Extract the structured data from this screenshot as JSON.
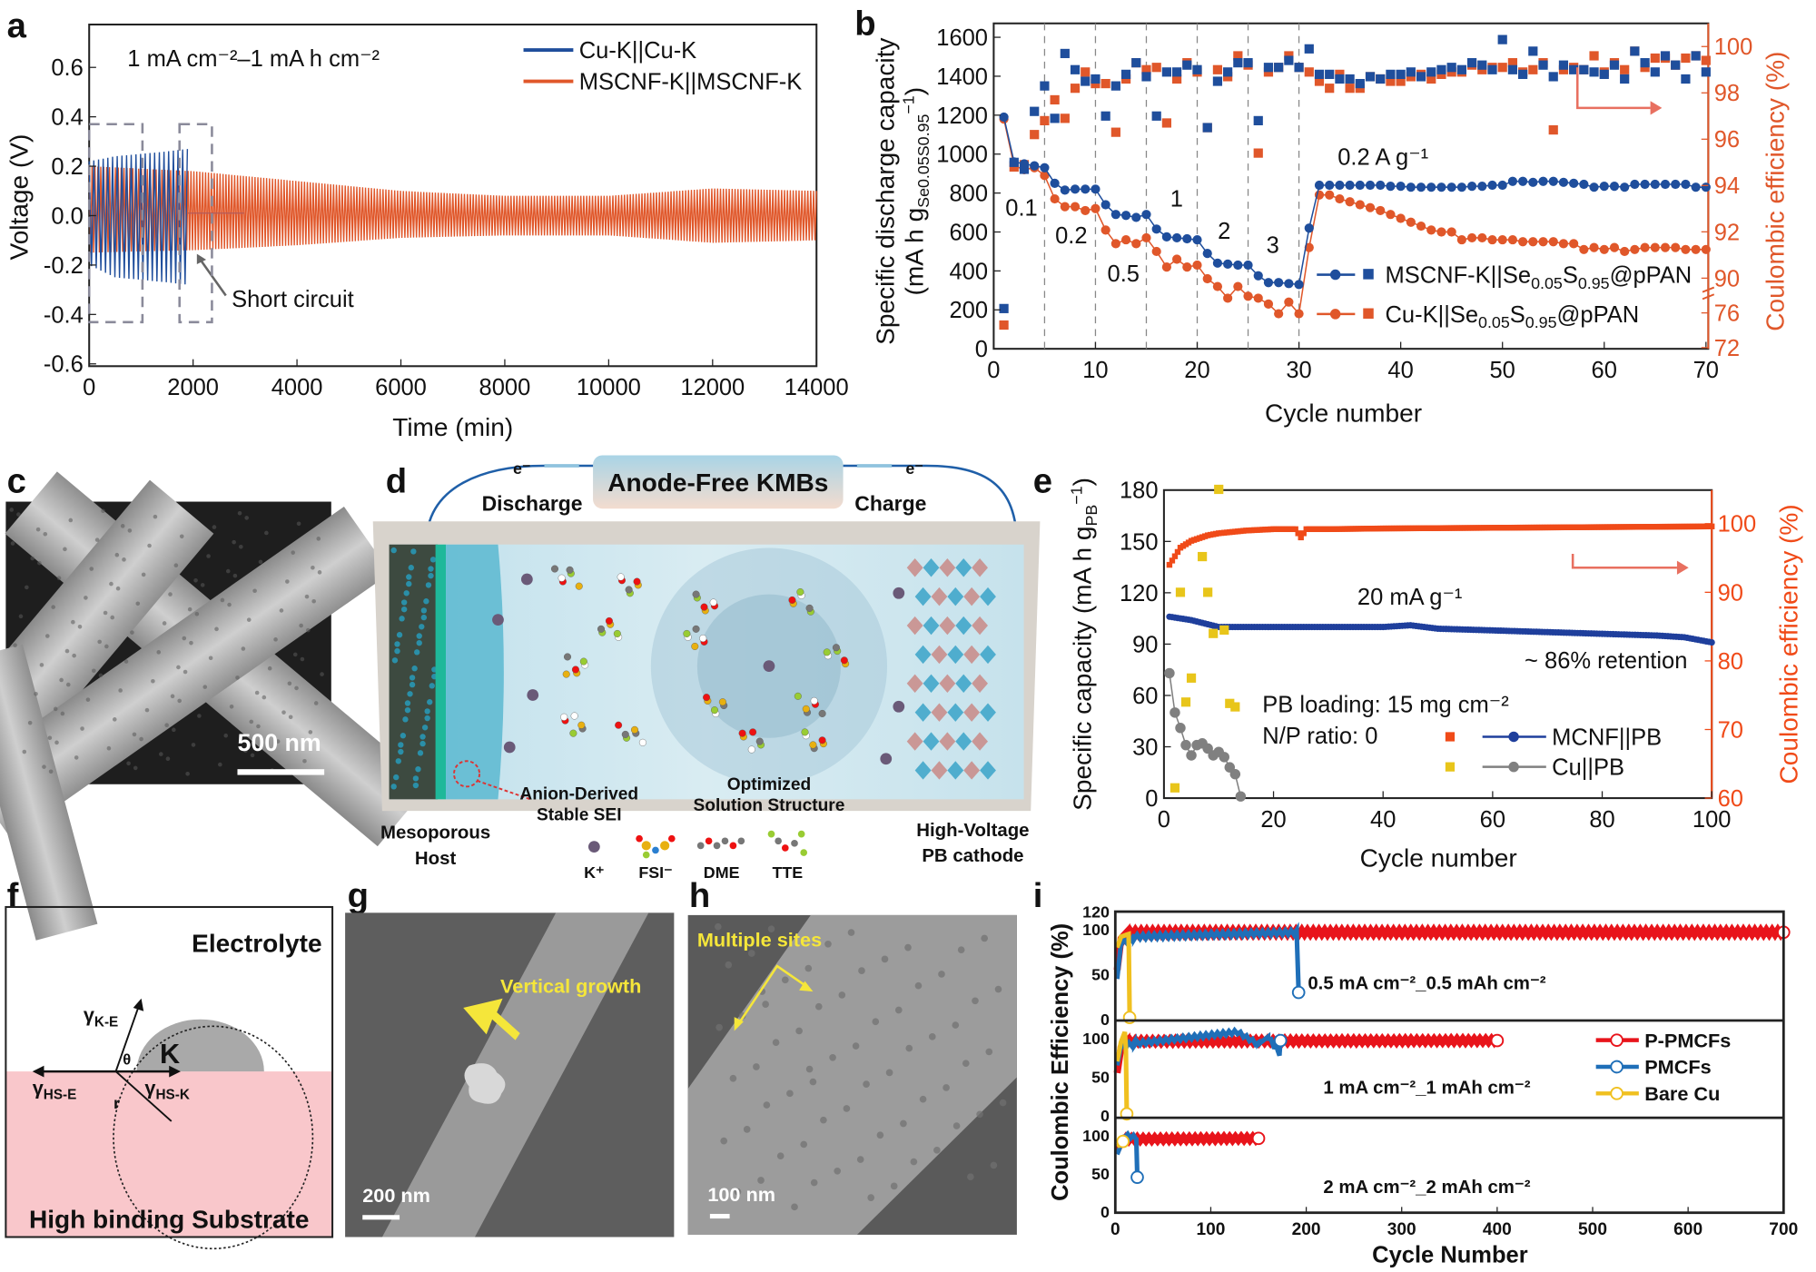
{
  "panel_labels": {
    "a": "a",
    "b": "b",
    "c": "c",
    "d": "d",
    "e": "e",
    "f": "f",
    "g": "g",
    "h": "h",
    "i": "i"
  },
  "colors": {
    "blue": "#1f4e9c",
    "orange": "#e0572a",
    "gray": "#7a7a7a",
    "yellow": "#e8c51a",
    "red": "#e8141b",
    "ppmcf_blue": "#1f6fb8",
    "barecu": "#f0c020"
  },
  "chart_data": [
    {
      "panel": "a",
      "type": "line",
      "xlabel": "Time (min)",
      "ylabel": "Voltage (V)",
      "xlim": [
        0,
        14000
      ],
      "ylim": [
        -0.6,
        0.75
      ],
      "x_ticks": [
        "0",
        "2000",
        "4000",
        "6000",
        "8000",
        "10000",
        "12000",
        "14000"
      ],
      "y_ticks": [
        "0.6",
        "0.4",
        "0.2",
        "0.0",
        "-0.2",
        "-0.4",
        "-0.6"
      ],
      "annotation": "1 mA cm⁻²–1 mA h cm⁻²",
      "callout": "Short circuit",
      "legend": "top-right",
      "series": [
        {
          "name": "Cu-K||Cu-K",
          "color": "#1f4e9c",
          "envelope": {
            "x": [
              0,
              500,
              1000,
              1500,
              1900
            ],
            "upper": [
              0.22,
              0.24,
              0.25,
              0.26,
              0.27
            ],
            "lower": [
              -0.2,
              -0.25,
              -0.26,
              -0.27,
              -0.28
            ]
          },
          "after_short_circuit": {
            "x": [
              1900,
              3000
            ],
            "v": 0.0
          }
        },
        {
          "name": "MSCNF-K||MSCNF-K",
          "color": "#e0572a",
          "envelope": {
            "x": [
              0,
              2000,
              4000,
              6000,
              8000,
              10000,
              12000,
              14000
            ],
            "upper": [
              0.2,
              0.18,
              0.14,
              0.1,
              0.08,
              0.08,
              0.11,
              0.1
            ],
            "lower": [
              -0.15,
              -0.14,
              -0.12,
              -0.09,
              -0.08,
              -0.08,
              -0.11,
              -0.1
            ]
          }
        }
      ]
    },
    {
      "panel": "b",
      "type": "scatter",
      "xlabel": "Cycle number",
      "ylabel": "Specific discharge capacity",
      "ylabel_unit": {
        "pre": "(mA h g",
        "sub": "Se0.05S0.95",
        "sup": "−1",
        "post": ")"
      },
      "y2label": "Coulombic efficiency (%)",
      "xlim": [
        0,
        70
      ],
      "ylim": [
        0,
        1600
      ],
      "y2_segments": [
        [
          72,
          76
        ],
        [
          90,
          100
        ]
      ],
      "x_ticks": [
        "0",
        "10",
        "20",
        "30",
        "40",
        "50",
        "60",
        "70"
      ],
      "y_ticks": [
        "0",
        "200",
        "400",
        "600",
        "800",
        "1000",
        "1200",
        "1400",
        "1600"
      ],
      "y2_ticks": [
        "72",
        "76",
        "90",
        "92",
        "94",
        "96",
        "98",
        "100"
      ],
      "rate_change_cycles": [
        5,
        10,
        15,
        20,
        25,
        30
      ],
      "rate_labels": [
        "0.1",
        "0.2",
        "0.5",
        "1",
        "2",
        "3"
      ],
      "rate_return_label": "0.2 A g⁻¹",
      "legend": "center-right",
      "series": [
        {
          "name": {
            "pre": "MSCNF-K||Se",
            "s1": "0.05",
            "mid": "S",
            "s2": "0.95",
            "post": "@pPAN"
          },
          "color": "#1f4e9c",
          "capacity": [
            1190,
            960,
            950,
            940,
            930,
            850,
            815,
            820,
            820,
            820,
            740,
            690,
            685,
            675,
            690,
            615,
            575,
            570,
            565,
            560,
            490,
            440,
            435,
            430,
            430,
            375,
            340,
            340,
            335,
            330,
            620,
            840,
            840,
            840,
            840,
            840,
            840,
            840,
            835,
            835,
            830,
            830,
            830,
            830,
            830,
            830,
            835,
            835,
            840,
            840,
            860,
            860,
            855,
            860,
            860,
            855,
            850,
            845,
            830,
            835,
            835,
            830,
            845,
            845,
            845,
            845,
            845,
            845,
            830,
            830
          ],
          "ce": [
            76.5,
            95.0,
            94.7,
            97.2,
            98.3,
            96.9,
            99.7,
            99.0,
            98.5,
            98.6,
            97.0,
            98.3,
            98.8,
            99.3,
            98.7,
            97.0,
            98.9,
            98.9,
            99.2,
            99.0,
            96.5,
            98.5,
            98.9,
            99.3,
            99.3,
            96.8,
            99.1,
            99.1,
            99.4,
            99.1,
            99.9,
            98.8,
            98.8,
            98.6,
            98.6,
            98.4,
            98.7,
            98.6,
            98.8,
            98.8,
            98.9,
            98.7,
            98.9,
            99.0,
            99.1,
            99.0,
            99.3,
            99.2,
            99.0,
            100.3,
            99.0,
            98.8,
            99.8,
            99.2,
            98.7,
            99.2,
            99.0,
            99.0,
            98.9,
            98.8,
            99.2,
            98.6,
            99.8,
            99.3,
            98.9,
            99.6,
            99.2,
            98.6,
            99.6,
            98.9
          ]
        },
        {
          "name": {
            "pre": "Cu-K||Se",
            "s1": "0.05",
            "mid": "S",
            "s2": "0.95",
            "post": "@pPAN"
          },
          "color": "#e0572a",
          "capacity": [
            1180,
            940,
            920,
            930,
            890,
            770,
            730,
            730,
            710,
            720,
            610,
            540,
            560,
            540,
            570,
            500,
            420,
            460,
            420,
            430,
            360,
            320,
            260,
            320,
            270,
            260,
            230,
            180,
            240,
            180,
            520,
            790,
            790,
            770,
            755,
            740,
            725,
            710,
            690,
            670,
            650,
            630,
            610,
            600,
            600,
            560,
            570,
            570,
            560,
            560,
            560,
            550,
            550,
            550,
            550,
            540,
            540,
            510,
            520,
            510,
            520,
            500,
            510,
            520,
            520,
            520,
            520,
            510,
            510,
            510
          ],
          "ce": [
            74.6,
            94.8,
            94.9,
            96.2,
            96.8,
            97.7,
            96.9,
            98.2,
            98.9,
            98.4,
            98.4,
            96.3,
            98.6,
            99.3,
            99.0,
            99.1,
            96.7,
            98.6,
            99.3,
            98.9,
            96.5,
            99.0,
            98.7,
            99.6,
            99.2,
            95.4,
            98.9,
            99.1,
            99.6,
            99.1,
            98.9,
            98.5,
            98.2,
            98.8,
            98.2,
            98.2,
            98.7,
            98.6,
            98.5,
            98.5,
            98.7,
            98.8,
            98.6,
            98.8,
            98.9,
            98.9,
            99.2,
            99.0,
            99.1,
            99.1,
            99.3,
            98.9,
            99.0,
            99.3,
            96.4,
            99.0,
            99.1,
            99.0,
            99.6,
            98.9,
            99.3,
            99.0,
            99.8,
            99.1,
            99.5,
            99.5,
            99.2,
            99.5,
            99.6,
            99.4
          ]
        }
      ]
    },
    {
      "panel": "e",
      "type": "scatter",
      "xlabel": "Cycle number",
      "ylabel": {
        "pre": "Specific capacity  (mA h g",
        "sub": "PB",
        "sup": "−1",
        "post": ")"
      },
      "y2label": "Coulombic efficiency (%)",
      "xlim": [
        0,
        100
      ],
      "ylim": [
        0,
        180
      ],
      "y2lim": [
        60,
        105
      ],
      "x_ticks": [
        "0",
        "20",
        "40",
        "60",
        "80",
        "100"
      ],
      "y_ticks": [
        "0",
        "30",
        "60",
        "90",
        "120",
        "150",
        "180"
      ],
      "y2_ticks": [
        "60",
        "70",
        "80",
        "90",
        "100"
      ],
      "annotations": {
        "rate": "20 mA g⁻¹",
        "retention": "~ 86% retention",
        "loading": "PB loading: 15 mg cm⁻²",
        "np": "N/P ratio: 0"
      },
      "legend": "bottom-right",
      "series": [
        {
          "name": "MCNF||PB",
          "color": "#1f3f9c",
          "ce_color": "#f04a18",
          "capacity": {
            "x": [
              1,
              5,
              10,
              20,
              30,
              40,
              45,
              50,
              60,
              70,
              80,
              90,
              95,
              100
            ],
            "y": [
              106,
              104,
              100,
              100,
              100,
              100,
              101,
              99,
              98,
              97,
              96,
              95,
              94,
              91
            ]
          },
          "ce": {
            "x": [
              1,
              3,
              5,
              8,
              10,
              15,
              20,
              24,
              25,
              26,
              30,
              40,
              60,
              80,
              100
            ],
            "y": [
              94,
              96.5,
              97.5,
              98.3,
              98.6,
              99.0,
              99.2,
              99.2,
              98.0,
              99.2,
              99.2,
              99.3,
              99.4,
              99.5,
              99.6
            ]
          }
        },
        {
          "name": "Cu||PB",
          "color": "#808080",
          "ce_color": "#e8c51a",
          "capacity": {
            "x": [
              1,
              2,
              3,
              4,
              5,
              6,
              7,
              8,
              9,
              10,
              11,
              12,
              13,
              14
            ],
            "y": [
              73,
              50,
              41,
              31,
              25,
              31,
              32,
              29,
              25,
              27,
              24,
              18,
              14,
              1
            ]
          },
          "ce": {
            "x": [
              2,
              3,
              4,
              5,
              7,
              8,
              9,
              10,
              11,
              12,
              13
            ],
            "y": [
              61.5,
              90,
              74,
              77.5,
              95.2,
              90,
              84,
              105,
              84.5,
              73.8,
              73.3
            ]
          }
        }
      ]
    },
    {
      "panel": "i",
      "type": "line",
      "xlabel": "Cycle Number",
      "ylabel": "Coulombic Efficiency (%)",
      "xlim": [
        0,
        700
      ],
      "ylim": [
        0,
        120
      ],
      "x_ticks": [
        "0",
        "100",
        "200",
        "300",
        "400",
        "500",
        "600",
        "700"
      ],
      "y_ticks_top": [
        "0",
        "50",
        "100",
        "120"
      ],
      "y_ticks": [
        "0",
        "50",
        "100"
      ],
      "legend": "right",
      "subplots": [
        {
          "label": "0.5 mA cm⁻²_0.5 mAh cm⁻²",
          "series": {
            "P-PMCFs": [
              [
                2,
                55
              ],
              [
                6,
                90
              ],
              [
                12,
                97
              ],
              [
                700,
                97
              ]
            ],
            "PMCFs": [
              [
                2,
                45
              ],
              [
                6,
                85
              ],
              [
                20,
                92
              ],
              [
                190,
                97
              ],
              [
                192,
                30
              ]
            ],
            "Bare Cu": [
              [
                2,
                80
              ],
              [
                6,
                92
              ],
              [
                14,
                95
              ],
              [
                15,
                2
              ]
            ]
          }
        },
        {
          "label": "1 mA cm⁻²_1 mAh cm⁻²",
          "series": {
            "P-PMCFs": [
              [
                2,
                55
              ],
              [
                6,
                88
              ],
              [
                12,
                96
              ],
              [
                400,
                97
              ]
            ],
            "PMCFs": [
              [
                2,
                65
              ],
              [
                6,
                90
              ],
              [
                20,
                93
              ],
              [
                128,
                108
              ],
              [
                150,
                92
              ],
              [
                160,
                102
              ],
              [
                172,
                80
              ],
              [
                173,
                97
              ]
            ],
            "Bare Cu": [
              [
                2,
                70
              ],
              [
                6,
                95
              ],
              [
                10,
                108
              ],
              [
                11,
                88
              ],
              [
                12,
                2
              ]
            ]
          }
        },
        {
          "label": "2 mA cm⁻²_2 mAh cm⁻²",
          "series": {
            "P-PMCFs": [
              [
                2,
                80
              ],
              [
                8,
                95
              ],
              [
                150,
                96
              ]
            ],
            "PMCFs": [
              [
                2,
                75
              ],
              [
                10,
                100
              ],
              [
                22,
                97
              ],
              [
                23,
                45
              ]
            ],
            "Bare Cu": [
              [
                2,
                85
              ],
              [
                8,
                92
              ]
            ]
          }
        }
      ],
      "series_names": [
        "P-PMCFs",
        "PMCFs",
        "Bare Cu"
      ],
      "series_colors": [
        "#e8141b",
        "#1f6fb8",
        "#f0c020"
      ]
    }
  ],
  "panel_c": {
    "scale_bar": "500 nm"
  },
  "panel_d": {
    "title": "Anode-Free KMBs",
    "electron_left": "e⁻",
    "electron_right": "e⁻",
    "discharge": "Discharge",
    "charge": "Charge",
    "sei_1": "Anion-Derived",
    "sei_2": "Stable SEI",
    "solution_1": "Optimized",
    "solution_2": "Solution Structure",
    "host_1": "Mesoporous",
    "host_2": "Host",
    "cathode_1": "High-Voltage",
    "cathode_2": "PB cathode",
    "legend": {
      "k": "K⁺",
      "fsi": "FSI⁻",
      "dme": "DME",
      "tte": "TTE"
    }
  },
  "panel_f": {
    "electrolyte": "Electrolyte",
    "k": "K",
    "theta": "θ",
    "r": "r",
    "gamma_ke": {
      "g": "γ",
      "sub": "K-E"
    },
    "gamma_hse": {
      "g": "γ",
      "sub": "HS-E"
    },
    "gamma_hsk": {
      "g": "γ",
      "sub": "HS-K"
    },
    "substrate": "High binding Substrate"
  },
  "panel_g": {
    "annotation": "Vertical growth",
    "scale_bar": "200 nm"
  },
  "panel_h": {
    "annotation": "Multiple sites",
    "scale_bar": "100 nm"
  }
}
